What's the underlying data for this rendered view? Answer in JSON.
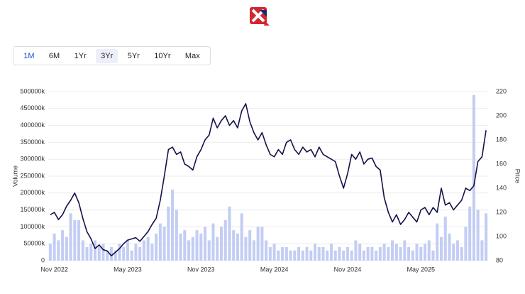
{
  "range_buttons": [
    "1M",
    "6M",
    "1Yr",
    "3Yr",
    "5Yr",
    "10Yr",
    "Max"
  ],
  "chart_data": {
    "type": "combo",
    "ylabel": "Volume",
    "y2label": "Price",
    "categories": [
      null,
      "Nov 2022",
      null,
      null,
      null,
      null,
      null,
      null,
      null,
      null,
      null,
      null,
      null,
      null,
      null,
      null,
      null,
      null,
      null,
      "May 2023",
      null,
      null,
      null,
      null,
      null,
      null,
      null,
      null,
      null,
      null,
      null,
      null,
      null,
      null,
      null,
      null,
      null,
      "Nov 2023",
      null,
      null,
      null,
      null,
      null,
      null,
      null,
      null,
      null,
      null,
      null,
      null,
      null,
      null,
      null,
      null,
      null,
      "May 2024",
      null,
      null,
      null,
      null,
      null,
      null,
      null,
      null,
      null,
      null,
      null,
      null,
      null,
      null,
      null,
      null,
      null,
      "Nov 2024",
      null,
      null,
      null,
      null,
      null,
      null,
      null,
      null,
      null,
      null,
      null,
      null,
      null,
      null,
      null,
      null,
      null,
      "May 2025",
      null,
      null,
      null,
      null,
      null,
      null,
      null,
      null,
      null,
      null,
      null,
      null,
      null,
      null,
      null,
      null
    ],
    "ylim": [
      0,
      500000
    ],
    "yticks": [
      0,
      {
        "value": 50000,
        "label": "50000k"
      },
      {
        "value": 100000,
        "label": "100000k"
      },
      {
        "value": 150000,
        "label": "150000k"
      },
      {
        "value": 200000,
        "label": "200000k"
      },
      {
        "value": 250000,
        "label": "250000k"
      },
      {
        "value": 300000,
        "label": "300000k"
      },
      {
        "value": 350000,
        "label": "350000k"
      },
      {
        "value": 400000,
        "label": "400000k"
      },
      {
        "value": 450000,
        "label": "450000k"
      },
      {
        "value": 500000,
        "label": "500000k"
      }
    ],
    "y2lim": [
      80,
      220
    ],
    "y2ticks": [
      80,
      100,
      120,
      140,
      160,
      180,
      200,
      220
    ],
    "grid": true,
    "series": [
      {
        "type": "bar",
        "color": "#c3cdf4",
        "values": [
          50000,
          80000,
          60000,
          90000,
          70000,
          140000,
          120000,
          120000,
          60000,
          40000,
          50000,
          60000,
          40000,
          50000,
          30000,
          40000,
          30000,
          50000,
          40000,
          60000,
          30000,
          50000,
          40000,
          60000,
          70000,
          50000,
          80000,
          110000,
          100000,
          160000,
          210000,
          150000,
          80000,
          90000,
          60000,
          70000,
          90000,
          80000,
          100000,
          60000,
          110000,
          70000,
          100000,
          120000,
          160000,
          90000,
          80000,
          140000,
          70000,
          90000,
          60000,
          100000,
          100000,
          60000,
          40000,
          50000,
          30000,
          40000,
          40000,
          30000,
          30000,
          40000,
          30000,
          40000,
          30000,
          50000,
          40000,
          40000,
          30000,
          50000,
          30000,
          40000,
          30000,
          40000,
          30000,
          60000,
          50000,
          30000,
          40000,
          40000,
          30000,
          40000,
          50000,
          40000,
          60000,
          50000,
          40000,
          60000,
          40000,
          30000,
          50000,
          40000,
          50000,
          60000,
          30000,
          110000,
          70000,
          130000,
          80000,
          50000,
          60000,
          40000,
          100000,
          160000,
          490000,
          150000,
          60000,
          140000
        ]
      },
      {
        "type": "line",
        "axis": "y2",
        "color": "#14124a",
        "values": [
          118,
          120,
          114,
          118,
          125,
          130,
          136,
          128,
          115,
          104,
          98,
          90,
          93,
          89,
          88,
          84,
          87,
          90,
          94,
          97,
          98,
          99,
          96,
          100,
          104,
          110,
          115,
          130,
          150,
          172,
          174,
          168,
          170,
          160,
          158,
          155,
          166,
          172,
          180,
          184,
          198,
          190,
          196,
          200,
          192,
          196,
          190,
          204,
          210,
          195,
          186,
          180,
          186,
          176,
          168,
          166,
          172,
          168,
          178,
          180,
          172,
          168,
          174,
          170,
          172,
          166,
          174,
          168,
          166,
          164,
          162,
          150,
          140,
          152,
          168,
          164,
          170,
          160,
          164,
          165,
          158,
          155,
          132,
          120,
          112,
          118,
          110,
          114,
          120,
          116,
          112,
          122,
          124,
          118,
          124,
          120,
          140,
          126,
          128,
          122,
          126,
          130,
          140,
          138,
          142,
          162,
          166,
          188
        ]
      }
    ]
  }
}
